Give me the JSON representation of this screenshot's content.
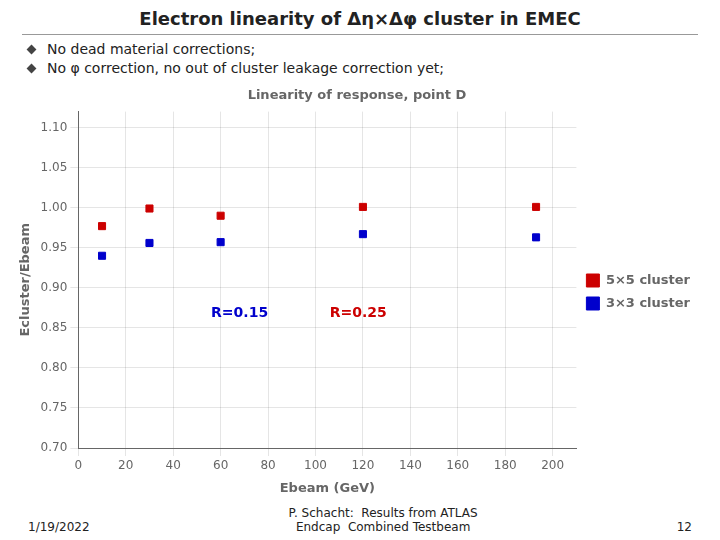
{
  "chart_data": {
    "type": "scatter",
    "title": "Electron linearity of Δη×Δφ cluster in EMEC",
    "subtitle": "Linearity of response, point D",
    "bullets": [
      "No dead material corrections;",
      "No φ correction, no out of cluster leakage correction yet;"
    ],
    "footer": [
      "1/19/2022",
      "P. Schacht:  Results from ATLAS\nEndcap  Combined Testbeam",
      "12"
    ],
    "x_label": "Ebeam (GeV)",
    "y_label": "Ecluster/Ebeam",
    "x": [
      10,
      30,
      60,
      120,
      193
    ],
    "series": [
      {
        "name": "5×5 cluster",
        "color": "#cc0000",
        "marker": "square",
        "values": [
          0.977,
          0.999,
          0.99,
          1.001,
          1.001
        ]
      },
      {
        "name": "3×3 cluster",
        "color": "#0000cc",
        "marker": "square",
        "values": [
          0.94,
          0.956,
          0.957,
          0.967,
          0.963
        ]
      }
    ],
    "annotations": [
      {
        "text": "R=0.15",
        "x": 68,
        "y": 0.864,
        "color": "#0000cc"
      },
      {
        "text": "R=0.25",
        "x": 118,
        "y": 0.864,
        "color": "#cc0000"
      }
    ],
    "xlim": [
      0,
      210
    ],
    "ylim": [
      0.7,
      1.12
    ],
    "xticks": [
      0,
      20,
      40,
      60,
      80,
      100,
      120,
      140,
      160,
      180,
      200
    ],
    "yticks": [
      {
        "value": 0.7,
        "label": "0.70"
      },
      0.75,
      {
        "value": 0.8,
        "label": "0.80"
      },
      0.85,
      {
        "value": 0.9,
        "label": "0.90"
      },
      0.95,
      {
        "value": 1.0,
        "label": "1.00"
      },
      1.05,
      {
        "value": 1.1,
        "label": "1.10"
      }
    ],
    "grid": true,
    "legend": "right"
  }
}
